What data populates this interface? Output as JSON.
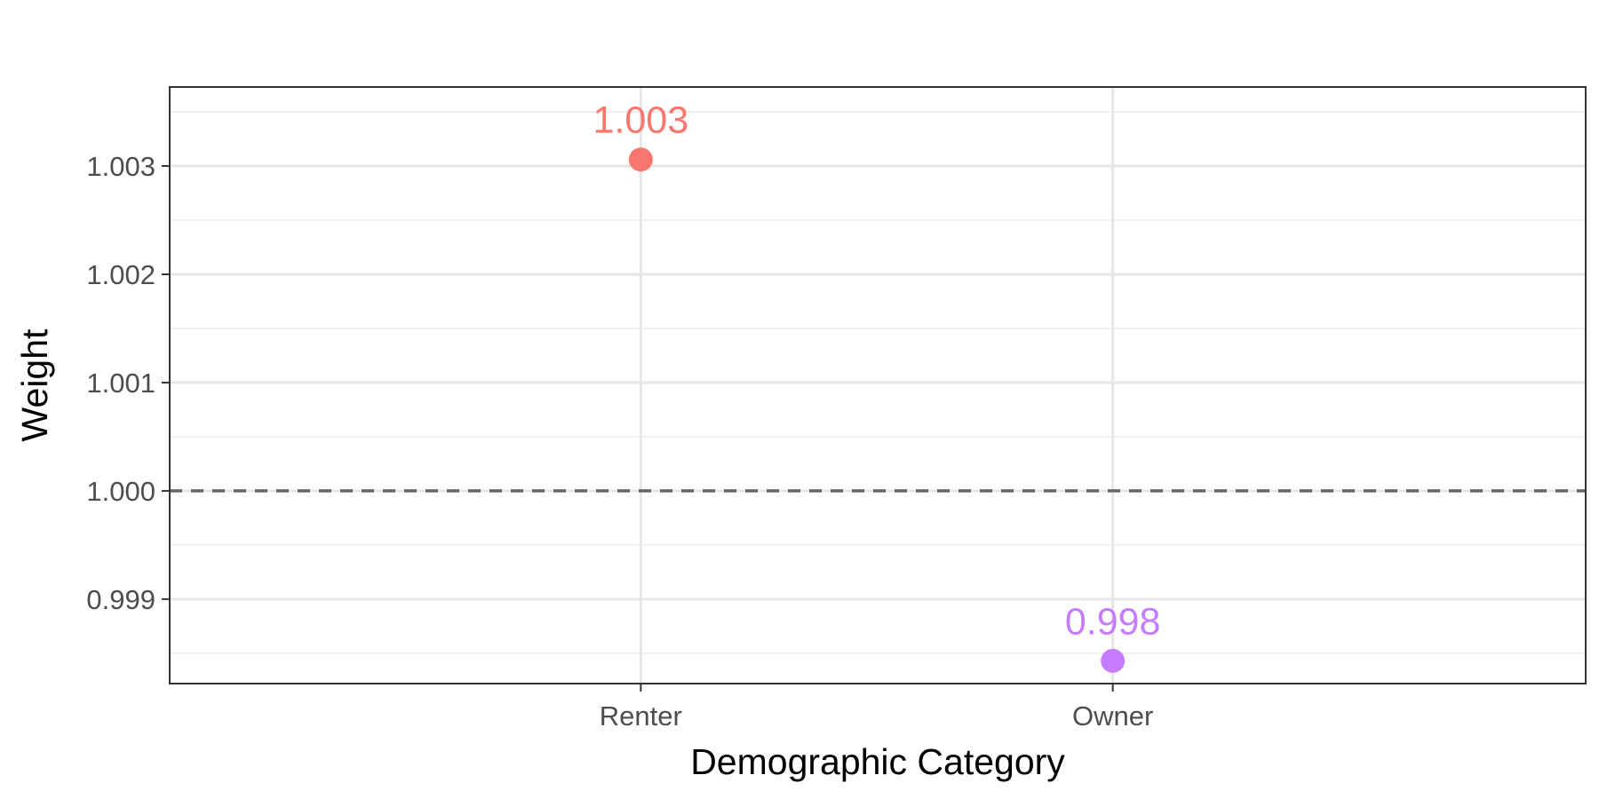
{
  "chart_data": {
    "type": "scatter",
    "title": "",
    "xlabel": "Demographic Category",
    "ylabel": "Weight",
    "categories": [
      "Renter",
      "Owner"
    ],
    "points": [
      {
        "category": "Renter",
        "value": 1.00306,
        "label": "1.003",
        "color": "#F8766D"
      },
      {
        "category": "Owner",
        "value": 0.99843,
        "label": "0.998",
        "color": "#C77CFF"
      }
    ],
    "ylim": [
      0.99822,
      1.00373
    ],
    "yticks": [
      0.999,
      1.0,
      1.001,
      1.002,
      1.003
    ],
    "ytick_labels": [
      "0.999",
      "1.000",
      "1.001",
      "1.002",
      "1.003"
    ],
    "reference_line": {
      "y": 1.0,
      "style": "dashed",
      "color": "#666666"
    },
    "grid": true,
    "legend": "none"
  }
}
